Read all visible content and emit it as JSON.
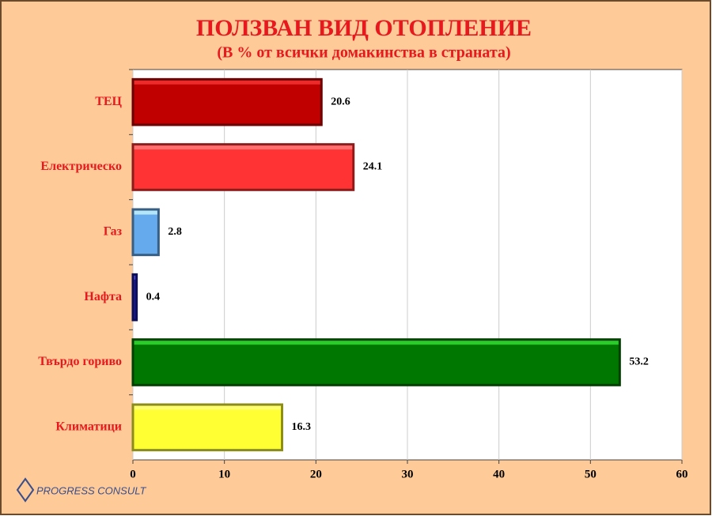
{
  "chart_data": {
    "type": "bar",
    "orientation": "horizontal",
    "title": "ПОЛЗВАН ВИД ОТОПЛЕНИЕ",
    "subtitle": "(В % от всички домакинства в страната)",
    "categories": [
      "ТЕЦ",
      "Електрическо",
      "Газ",
      "Нафта",
      "Твърдо гориво",
      "Климатици"
    ],
    "values": [
      20.6,
      24.1,
      2.8,
      0.4,
      53.2,
      16.3
    ],
    "colors": [
      "#c00000",
      "#ff3333",
      "#66aaee",
      "#1a1a99",
      "#007700",
      "#ffff33"
    ],
    "xlim": [
      0,
      60
    ],
    "xticks": [
      0,
      10,
      20,
      30,
      40,
      50,
      60
    ],
    "grid": true,
    "logo": "PROGRESS CONSULT"
  }
}
